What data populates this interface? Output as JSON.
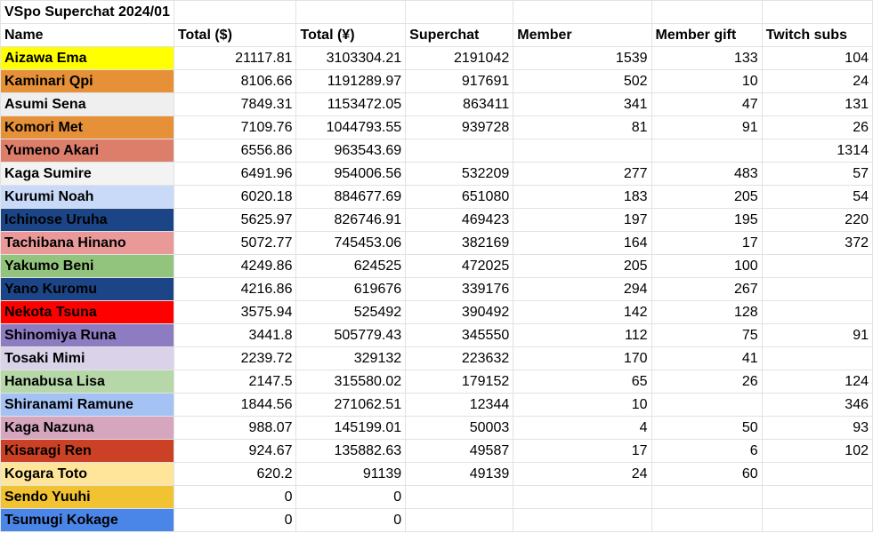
{
  "sheet": {
    "title": "VSpo Superchat 2024/01",
    "columns": [
      "Name",
      "Total ($)",
      "Total (¥)",
      "Superchat",
      "Member",
      "Member gift",
      "Twitch subs"
    ],
    "rows": [
      {
        "name": "Aizawa Ema",
        "color": "#ffff00",
        "total_usd": "21117.81",
        "total_jpy": "3103304.21",
        "superchat": "2191042",
        "member": "1539",
        "member_gift": "133",
        "twitch_subs": "104"
      },
      {
        "name": "Kaminari Qpi",
        "color": "#e69138",
        "total_usd": "8106.66",
        "total_jpy": "1191289.97",
        "superchat": "917691",
        "member": "502",
        "member_gift": "10",
        "twitch_subs": "24"
      },
      {
        "name": "Asumi Sena",
        "color": "#efefef",
        "total_usd": "7849.31",
        "total_jpy": "1153472.05",
        "superchat": "863411",
        "member": "341",
        "member_gift": "47",
        "twitch_subs": "131"
      },
      {
        "name": "Komori Met",
        "color": "#e69138",
        "total_usd": "7109.76",
        "total_jpy": "1044793.55",
        "superchat": "939728",
        "member": "81",
        "member_gift": "91",
        "twitch_subs": "26"
      },
      {
        "name": "Yumeno Akari",
        "color": "#dd7e6b",
        "total_usd": "6556.86",
        "total_jpy": "963543.69",
        "superchat": "",
        "member": "",
        "member_gift": "",
        "twitch_subs": "1314"
      },
      {
        "name": "Kaga Sumire",
        "color": "#f3f3f3",
        "total_usd": "6491.96",
        "total_jpy": "954006.56",
        "superchat": "532209",
        "member": "277",
        "member_gift": "483",
        "twitch_subs": "57"
      },
      {
        "name": "Kurumi Noah",
        "color": "#c9daf8",
        "total_usd": "6020.18",
        "total_jpy": "884677.69",
        "superchat": "651080",
        "member": "183",
        "member_gift": "205",
        "twitch_subs": "54"
      },
      {
        "name": "Ichinose Uruha",
        "color": "#1c4587",
        "total_usd": "5625.97",
        "total_jpy": "826746.91",
        "superchat": "469423",
        "member": "197",
        "member_gift": "195",
        "twitch_subs": "220"
      },
      {
        "name": "Tachibana Hinano",
        "color": "#ea9999",
        "total_usd": "5072.77",
        "total_jpy": "745453.06",
        "superchat": "382169",
        "member": "164",
        "member_gift": "17",
        "twitch_subs": "372"
      },
      {
        "name": "Yakumo Beni",
        "color": "#93c47d",
        "total_usd": "4249.86",
        "total_jpy": "624525",
        "superchat": "472025",
        "member": "205",
        "member_gift": "100",
        "twitch_subs": ""
      },
      {
        "name": "Yano Kuromu",
        "color": "#1c4587",
        "total_usd": "4216.86",
        "total_jpy": "619676",
        "superchat": "339176",
        "member": "294",
        "member_gift": "267",
        "twitch_subs": ""
      },
      {
        "name": "Nekota Tsuna",
        "color": "#ff0000",
        "total_usd": "3575.94",
        "total_jpy": "525492",
        "superchat": "390492",
        "member": "142",
        "member_gift": "128",
        "twitch_subs": ""
      },
      {
        "name": "Shinomiya Runa",
        "color": "#8e7cc3",
        "total_usd": "3441.8",
        "total_jpy": "505779.43",
        "superchat": "345550",
        "member": "112",
        "member_gift": "75",
        "twitch_subs": "91"
      },
      {
        "name": "Tosaki Mimi",
        "color": "#d9d2e9",
        "total_usd": "2239.72",
        "total_jpy": "329132",
        "superchat": "223632",
        "member": "170",
        "member_gift": "41",
        "twitch_subs": ""
      },
      {
        "name": "Hanabusa Lisa",
        "color": "#b6d7a8",
        "total_usd": "2147.5",
        "total_jpy": "315580.02",
        "superchat": "179152",
        "member": "65",
        "member_gift": "26",
        "twitch_subs": "124"
      },
      {
        "name": "Shiranami Ramune",
        "color": "#a4c2f4",
        "total_usd": "1844.56",
        "total_jpy": "271062.51",
        "superchat": "12344",
        "member": "10",
        "member_gift": "",
        "twitch_subs": "346"
      },
      {
        "name": "Kaga Nazuna",
        "color": "#d5a6bd",
        "total_usd": "988.07",
        "total_jpy": "145199.01",
        "superchat": "50003",
        "member": "4",
        "member_gift": "50",
        "twitch_subs": "93"
      },
      {
        "name": "Kisaragi Ren",
        "color": "#cc4125",
        "total_usd": "924.67",
        "total_jpy": "135882.63",
        "superchat": "49587",
        "member": "17",
        "member_gift": "6",
        "twitch_subs": "102"
      },
      {
        "name": "Kogara Toto",
        "color": "#ffe599",
        "total_usd": "620.2",
        "total_jpy": "91139",
        "superchat": "49139",
        "member": "24",
        "member_gift": "60",
        "twitch_subs": ""
      },
      {
        "name": "Sendo Yuuhi",
        "color": "#f1c232",
        "total_usd": "0",
        "total_jpy": "0",
        "superchat": "",
        "member": "",
        "member_gift": "",
        "twitch_subs": ""
      },
      {
        "name": "Tsumugi Kokage",
        "color": "#4a86e8",
        "total_usd": "0",
        "total_jpy": "0",
        "superchat": "",
        "member": "",
        "member_gift": "",
        "twitch_subs": ""
      }
    ]
  }
}
